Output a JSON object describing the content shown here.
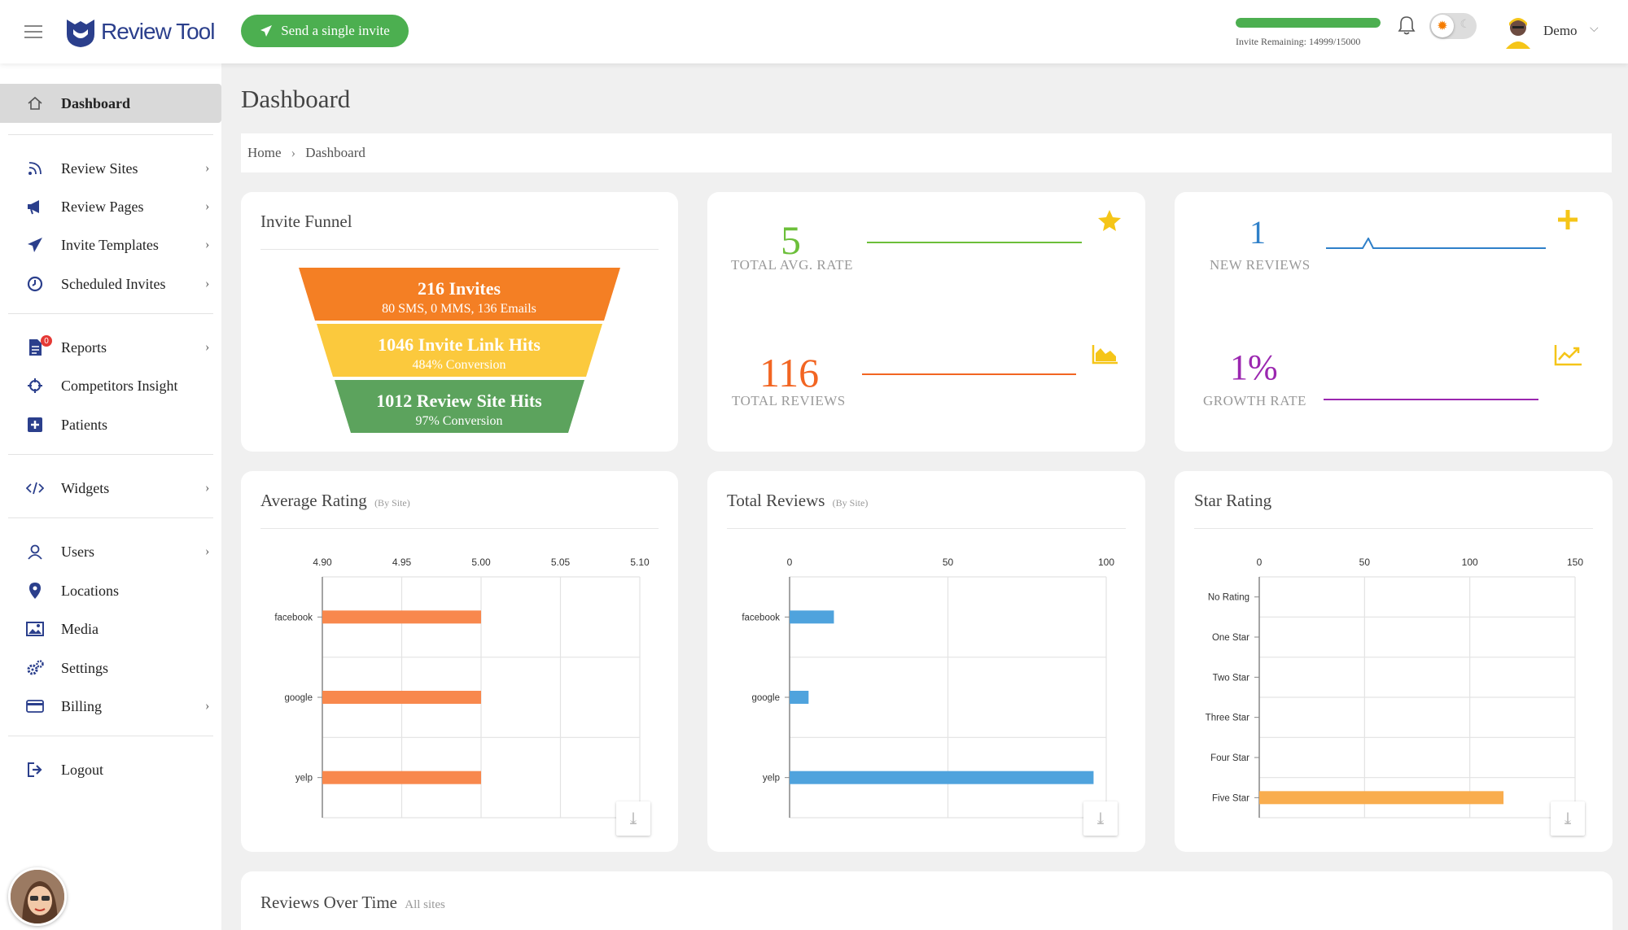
{
  "app": {
    "brand": "Review Tool",
    "accent": "#2b3f8c",
    "green": "#4caf50"
  },
  "header": {
    "send_invite_label": "Send a single invite",
    "invite_remaining_label": "Invite Remaining:",
    "invite_remaining_value": "14999/15000",
    "invite_remaining_fraction": 0.9999,
    "user_name": "Demo"
  },
  "sidebar": {
    "items": [
      {
        "label": "Dashboard",
        "icon": "home-icon"
      },
      {
        "label": "Review Sites",
        "icon": "rss-icon"
      },
      {
        "label": "Review Pages",
        "icon": "megaphone-icon"
      },
      {
        "label": "Invite Templates",
        "icon": "paper-plane-icon"
      },
      {
        "label": "Scheduled Invites",
        "icon": "clock-icon"
      },
      {
        "label": "Reports",
        "icon": "document-icon",
        "badge": "0"
      },
      {
        "label": "Competitors Insight",
        "icon": "crosshair-icon"
      },
      {
        "label": "Patients",
        "icon": "plus-square-icon"
      },
      {
        "label": "Widgets",
        "icon": "code-icon"
      },
      {
        "label": "Users",
        "icon": "user-icon"
      },
      {
        "label": "Locations",
        "icon": "map-pin-icon"
      },
      {
        "label": "Media",
        "icon": "image-icon"
      },
      {
        "label": "Settings",
        "icon": "gears-icon"
      },
      {
        "label": "Billing",
        "icon": "credit-card-icon"
      },
      {
        "label": "Logout",
        "icon": "logout-icon"
      }
    ]
  },
  "page": {
    "title": "Dashboard",
    "breadcrumb": [
      "Home",
      "Dashboard"
    ]
  },
  "funnel": {
    "title": "Invite Funnel",
    "stages": [
      {
        "main": "216 Invites",
        "sub": "80 SMS, 0 MMS, 136 Emails",
        "color": "#f47f24"
      },
      {
        "main": "1046 Invite Link Hits",
        "sub": "484% Conversion",
        "color": "#fbc93d"
      },
      {
        "main": "1012 Review Site Hits",
        "sub": "97% Conversion",
        "color": "#5ca35d"
      }
    ]
  },
  "stats": {
    "avg_rate": {
      "value": "5",
      "label": "TOTAL AVG. RATE",
      "color": "#6cbf3a"
    },
    "total_reviews": {
      "value": "116",
      "label": "TOTAL REVIEWS",
      "color": "#f26522"
    },
    "new_reviews": {
      "value": "1",
      "label": "NEW REVIEWS",
      "color": "#2f80c9"
    },
    "growth_rate": {
      "value": "1%",
      "label": "GROWTH RATE",
      "color": "#9b27b0"
    }
  },
  "charts": {
    "avg_rating": {
      "title": "Average Rating",
      "subtitle": "(By Site)"
    },
    "total_reviews": {
      "title": "Total Reviews",
      "subtitle": "(By Site)"
    },
    "star_rating": {
      "title": "Star Rating",
      "subtitle": ""
    }
  },
  "reviews_over_time": {
    "title": "Reviews Over Time",
    "subtitle": "All sites"
  },
  "chart_data": [
    {
      "type": "bar",
      "orientation": "horizontal",
      "title": "Average Rating (By Site)",
      "categories": [
        "facebook",
        "google",
        "yelp"
      ],
      "values": [
        5.0,
        5.0,
        5.0
      ],
      "xlim": [
        4.9,
        5.1
      ],
      "ticks": [
        "4.90",
        "4.95",
        "5.00",
        "5.05",
        "5.10"
      ],
      "color": "#f8884d",
      "grid": true
    },
    {
      "type": "bar",
      "orientation": "horizontal",
      "title": "Total Reviews (By Site)",
      "categories": [
        "facebook",
        "google",
        "yelp"
      ],
      "values": [
        14,
        6,
        96
      ],
      "xlim": [
        0,
        100
      ],
      "ticks": [
        "0",
        "50",
        "100"
      ],
      "color": "#4fa3dd",
      "grid": true
    },
    {
      "type": "bar",
      "orientation": "horizontal",
      "title": "Star Rating",
      "categories": [
        "No Rating",
        "One Star",
        "Two Star",
        "Three Star",
        "Four Star",
        "Five Star"
      ],
      "values": [
        0,
        0,
        0,
        0,
        0,
        116
      ],
      "xlim": [
        0,
        150
      ],
      "ticks": [
        "0",
        "50",
        "100",
        "150"
      ],
      "color": "#f9ad4e",
      "grid": true
    }
  ]
}
